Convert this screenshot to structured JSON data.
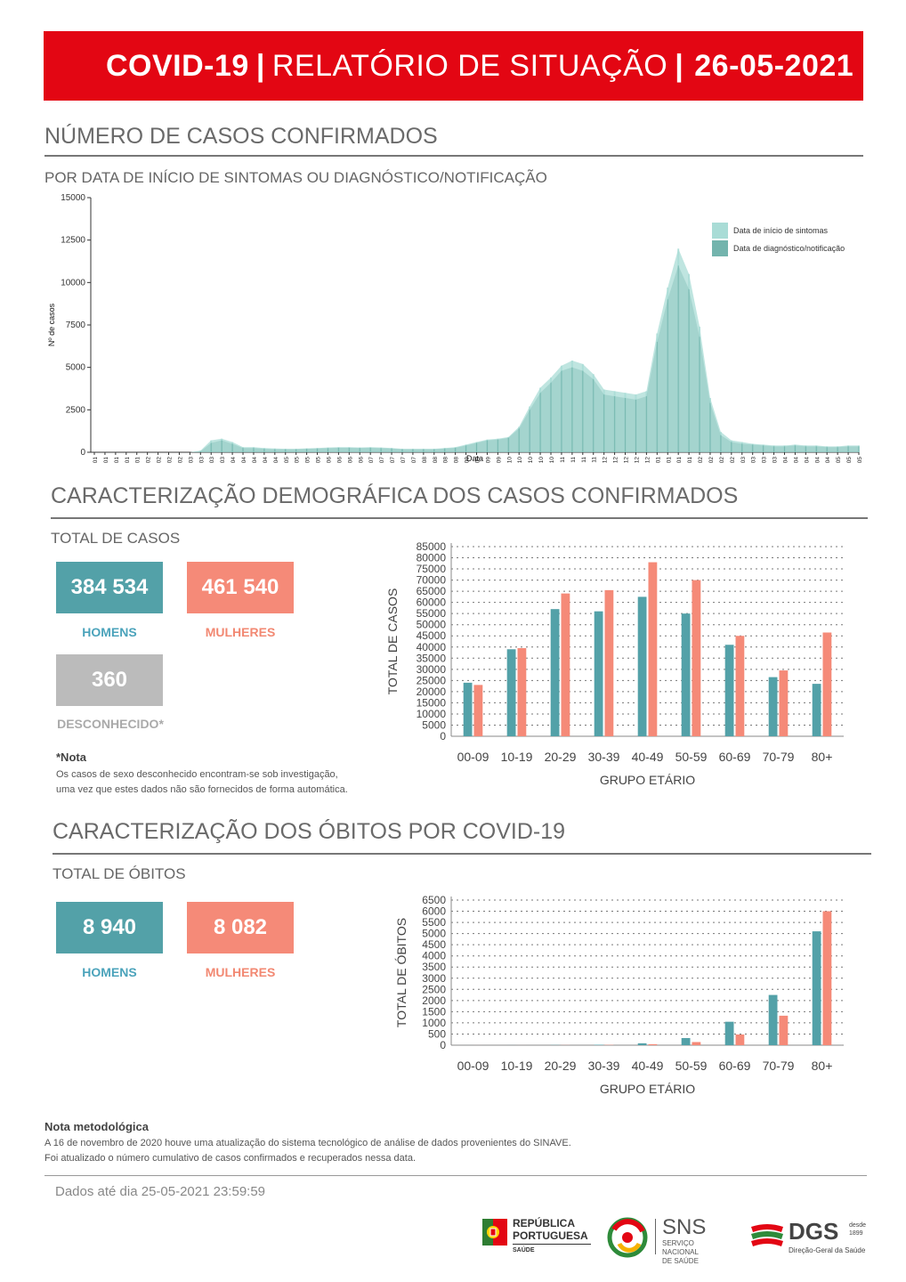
{
  "banner": {
    "part1": "COVID-19",
    "sep1": "|",
    "part2": "RELATÓRIO DE SITUAÇÃO",
    "sep2": "|",
    "date": "26-05-2021"
  },
  "section1": {
    "title": "NÚMERO DE CASOS CONFIRMADOS",
    "subtitle": "POR DATA DE INÍCIO DE SINTOMAS OU DIAGNÓSTICO/NOTIFICAÇÃO"
  },
  "section2": {
    "title": "CARACTERIZAÇÃO DEMOGRÁFICA DOS CASOS CONFIRMADOS",
    "subtitle": "TOTAL DE CASOS",
    "men_value": "384 534",
    "men_label": "HOMENS",
    "women_value": "461 540",
    "women_label": "MULHERES",
    "unknown_value": "360",
    "unknown_label": "DESCONHECIDO*",
    "note_title": "*Nota",
    "note_line1": "Os casos de sexo desconhecido encontram-se sob investigação,",
    "note_line2": "uma vez que estes dados não são fornecidos de forma automática."
  },
  "section3": {
    "title": "CARACTERIZAÇÃO DOS ÓBITOS POR COVID-19",
    "subtitle": "TOTAL DE ÓBITOS",
    "men_value": "8 940",
    "men_label": "HOMENS",
    "women_value": "8 082",
    "women_label": "MULHERES"
  },
  "method_note": {
    "title": "Nota metodológica",
    "line1": "A 16 de novembro de 2020 houve uma atualização do sistema tecnológico de análise de dados provenientes do SINAVE.",
    "line2": "Foi atualizado o número cumulativo de casos confirmados e recuperados nessa data."
  },
  "footer": {
    "data_until": "Dados até dia 25-05-2021 23:59:59",
    "logo1_line1": "REPÚBLICA",
    "logo1_line2": "PORTUGUESA",
    "logo1_line3": "SAÚDE",
    "logo2_main": "SNS",
    "logo2_line1": "SERVIÇO NACIONAL",
    "logo2_line2": "DE SAÚDE",
    "logo3_main": "DGS",
    "logo3_small1": "desde",
    "logo3_small2": "1899",
    "logo3_line": "Direção-Geral da Saúde"
  },
  "colors": {
    "red": "#e30613",
    "teal": "#53a1a8",
    "salmon": "#f58a78",
    "series_light": "#a9dcd6",
    "series_dark": "#73b4ad"
  },
  "chart_data": [
    {
      "type": "area",
      "xlabel": "Data",
      "ylabel": "Nº de casos",
      "ylim": [
        0,
        15000
      ],
      "yticks": [
        0,
        2500,
        5000,
        7500,
        10000,
        12500,
        15000
      ],
      "legend_position": "top-right",
      "x_tick_labels": [
        "02/01",
        "09/01",
        "16/01",
        "23/01",
        "30/01",
        "06/02",
        "13/02",
        "20/02",
        "27/02",
        "05/03",
        "12/03",
        "19/03",
        "26/03",
        "02/04",
        "09/04",
        "16/04",
        "23/04",
        "30/04",
        "07/05",
        "14/05",
        "21/05",
        "28/05",
        "04/06",
        "11/06",
        "18/06",
        "25/06",
        "02/07",
        "09/07",
        "16/07",
        "23/07",
        "30/07",
        "06/08",
        "13/08",
        "20/08",
        "27/08",
        "03/09",
        "10/09",
        "17/09",
        "24/09",
        "01/10",
        "08/10",
        "15/10",
        "22/10",
        "29/10",
        "05/11",
        "12/11",
        "19/11",
        "26/11",
        "03/12",
        "10/12",
        "17/12",
        "24/12",
        "31/12",
        "07/01",
        "14/01",
        "21/01",
        "28/01",
        "04/02",
        "11/02",
        "18/02",
        "25/02",
        "04/03",
        "11/03",
        "18/03",
        "25/03",
        "01/04",
        "08/04",
        "15/04",
        "22/04",
        "29/04",
        "06/05",
        "13/05",
        "20/05"
      ],
      "series": [
        {
          "name": "Data de início de sintomas",
          "values": [
            0,
            0,
            0,
            0,
            0,
            0,
            0,
            0,
            0,
            0,
            100,
            700,
            800,
            600,
            300,
            300,
            250,
            220,
            200,
            200,
            230,
            250,
            280,
            300,
            300,
            280,
            300,
            280,
            250,
            200,
            200,
            200,
            200,
            250,
            300,
            450,
            600,
            750,
            800,
            900,
            1500,
            2700,
            3800,
            4400,
            5100,
            5400,
            5200,
            4600,
            3700,
            3600,
            3500,
            3400,
            3600,
            7000,
            9700,
            12000,
            10500,
            7400,
            3200,
            1200,
            700,
            600,
            500,
            450,
            400,
            400,
            450,
            400,
            400,
            350,
            350,
            400,
            400
          ]
        },
        {
          "name": "Data de diagnóstico/notificação",
          "values": [
            0,
            0,
            0,
            0,
            0,
            0,
            0,
            0,
            0,
            0,
            50,
            550,
            700,
            500,
            250,
            250,
            200,
            180,
            180,
            180,
            200,
            220,
            240,
            260,
            260,
            250,
            260,
            240,
            220,
            180,
            180,
            180,
            180,
            220,
            260,
            400,
            550,
            700,
            750,
            850,
            1400,
            2500,
            3500,
            4100,
            4800,
            5000,
            4800,
            4300,
            3400,
            3300,
            3200,
            3100,
            3300,
            6500,
            9000,
            11000,
            9600,
            6800,
            2900,
            1000,
            600,
            500,
            450,
            400,
            350,
            350,
            400,
            350,
            350,
            300,
            300,
            350,
            350
          ]
        }
      ]
    },
    {
      "type": "bar",
      "xlabel": "GRUPO ETÁRIO",
      "ylabel": "TOTAL DE CASOS",
      "ylim": [
        0,
        85000
      ],
      "yticks": [
        0,
        5000,
        10000,
        15000,
        20000,
        25000,
        30000,
        35000,
        40000,
        45000,
        50000,
        55000,
        60000,
        65000,
        70000,
        75000,
        80000,
        85000
      ],
      "categories": [
        "00-09",
        "10-19",
        "20-29",
        "30-39",
        "40-49",
        "50-59",
        "60-69",
        "70-79",
        "80+"
      ],
      "series": [
        {
          "name": "",
          "values": [
            24000,
            39000,
            57000,
            56000,
            62500,
            55000,
            41000,
            26500,
            23500
          ]
        },
        {
          "name": "",
          "values": [
            23000,
            39500,
            64000,
            65500,
            78000,
            70000,
            45000,
            29500,
            46500
          ]
        }
      ]
    },
    {
      "type": "bar",
      "xlabel": "GRUPO ETÁRIO",
      "ylabel": "TOTAL DE ÓBITOS",
      "ylim": [
        0,
        6500
      ],
      "yticks": [
        0,
        500,
        1000,
        1500,
        2000,
        2500,
        3000,
        3500,
        4000,
        4500,
        5000,
        5500,
        6000,
        6500
      ],
      "categories": [
        "00-09",
        "10-19",
        "20-29",
        "30-39",
        "40-49",
        "50-59",
        "60-69",
        "70-79",
        "80+"
      ],
      "series": [
        {
          "name": "",
          "values": [
            1,
            2,
            8,
            20,
            85,
            320,
            1050,
            2250,
            5100
          ]
        },
        {
          "name": "",
          "values": [
            1,
            1,
            5,
            12,
            45,
            140,
            480,
            1320,
            6000
          ]
        }
      ]
    }
  ]
}
